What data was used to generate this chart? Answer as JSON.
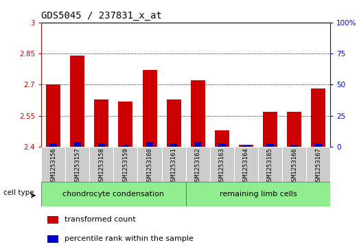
{
  "title": "GDS5045 / 237831_x_at",
  "samples": [
    "GSM1253156",
    "GSM1253157",
    "GSM1253158",
    "GSM1253159",
    "GSM1253160",
    "GSM1253161",
    "GSM1253162",
    "GSM1253163",
    "GSM1253164",
    "GSM1253165",
    "GSM1253166",
    "GSM1253167"
  ],
  "transformed_count": [
    2.7,
    2.84,
    2.63,
    2.62,
    2.77,
    2.63,
    2.72,
    2.48,
    2.41,
    2.57,
    2.57,
    2.68
  ],
  "percentile_rank": [
    3,
    4,
    3,
    2,
    4,
    3,
    4,
    3,
    1,
    3,
    2,
    3
  ],
  "ylim_left": [
    2.4,
    3.0
  ],
  "ylim_right": [
    0,
    100
  ],
  "yticks_left": [
    2.4,
    2.55,
    2.7,
    2.85,
    3.0
  ],
  "yticks_right": [
    0,
    25,
    50,
    75,
    100
  ],
  "ytick_labels_left": [
    "2.4",
    "2.55",
    "2.7",
    "2.85",
    "3"
  ],
  "ytick_labels_right": [
    "0",
    "25",
    "50",
    "75",
    "100%"
  ],
  "cell_type_groups": [
    {
      "label": "chondrocyte condensation",
      "start": 0,
      "end": 5,
      "color": "#90EE90"
    },
    {
      "label": "remaining limb cells",
      "start": 6,
      "end": 11,
      "color": "#90EE90"
    }
  ],
  "bar_width": 0.6,
  "red_color": "#CC0000",
  "blue_color": "#0000CC",
  "gray_box_color": "#CCCCCC",
  "plot_bg_color": "#FFFFFF",
  "cell_type_label": "cell type",
  "legend_items": [
    {
      "label": "transformed count",
      "color": "#CC0000"
    },
    {
      "label": "percentile rank within the sample",
      "color": "#0000CC"
    }
  ]
}
